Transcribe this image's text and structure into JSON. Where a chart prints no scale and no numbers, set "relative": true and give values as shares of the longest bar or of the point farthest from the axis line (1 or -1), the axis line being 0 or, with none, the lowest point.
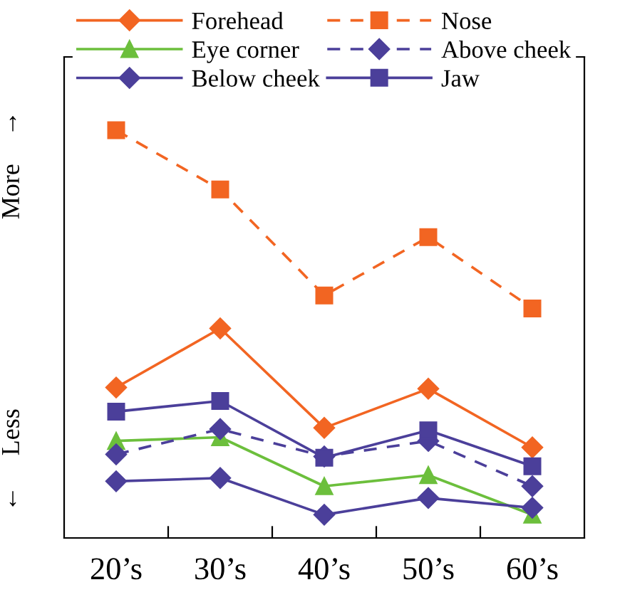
{
  "chart_data": {
    "type": "line",
    "relative": true,
    "categories": [
      "20’s",
      "30’s",
      "40’s",
      "50’s",
      "60’s"
    ],
    "annotations": [
      "More",
      "↑",
      "Less",
      "↓"
    ],
    "legend": "top",
    "grid": false,
    "series": [
      {
        "name": "Forehead",
        "color": "#f26522",
        "marker": "diamond",
        "line_style": "solid",
        "values": [
          0.369,
          0.514,
          0.27,
          0.366,
          0.222
        ]
      },
      {
        "name": "Nose",
        "color": "#f26522",
        "marker": "square",
        "line_style": "dashed",
        "values": [
          1,
          0.855,
          0.595,
          0.738,
          0.563
        ]
      },
      {
        "name": "Eye corner",
        "color": "#6cbf3c",
        "marker": "triangle",
        "line_style": "solid",
        "values": [
          0.238,
          0.247,
          0.127,
          0.154,
          0.057
        ]
      },
      {
        "name": "Above cheek",
        "color": "#4b3f9a",
        "marker": "diamond",
        "line_style": "dashed",
        "values": [
          0.205,
          0.267,
          0.2,
          0.238,
          0.127
        ]
      },
      {
        "name": "Below cheek",
        "color": "#4b3f9a",
        "marker": "diamond",
        "line_style": "solid",
        "values": [
          0.139,
          0.147,
          0.057,
          0.098,
          0.074
        ]
      },
      {
        "name": "Jaw",
        "color": "#4b3f9a",
        "marker": "square",
        "line_style": "solid",
        "values": [
          0.31,
          0.336,
          0.197,
          0.264,
          0.176
        ]
      }
    ]
  }
}
